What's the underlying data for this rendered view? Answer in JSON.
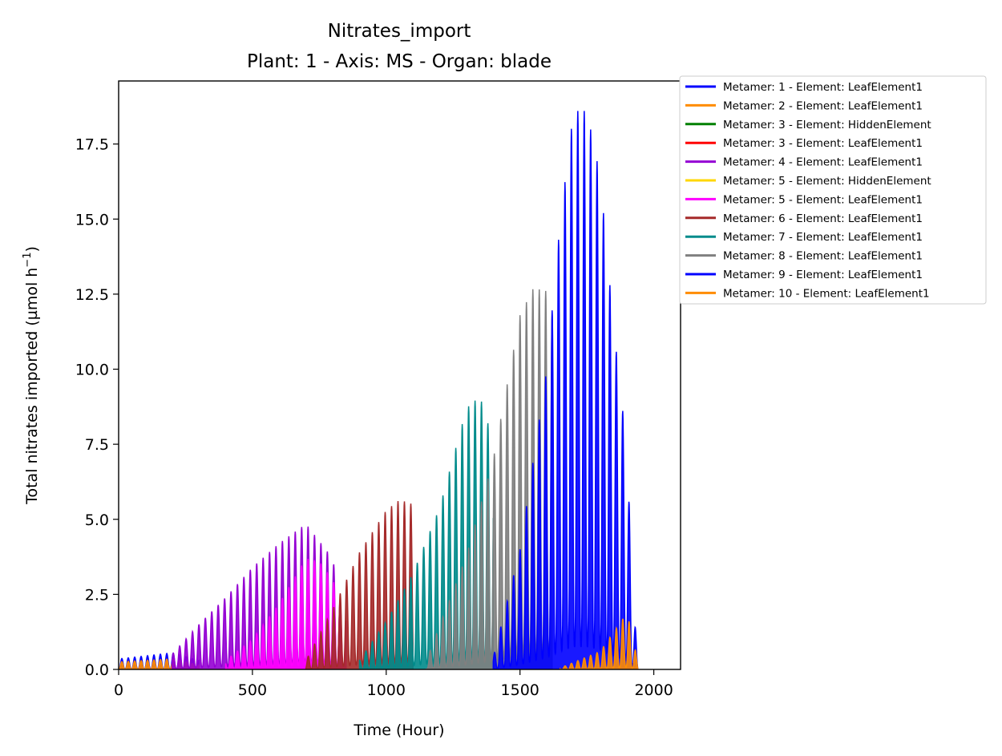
{
  "chart_data": {
    "type": "line",
    "title": "Nitrates_import",
    "subtitle": "Plant: 1 - Axis: MS - Organ: blade",
    "xlabel": "Time (Hour)",
    "ylabel_main": "Total nitrates imported (µmol h",
    "ylabel_sup": "−1",
    "ylabel_end": ")",
    "xlim": [
      0,
      2100
    ],
    "ylim": [
      0,
      19.6
    ],
    "xticks": [
      0,
      500,
      1000,
      1500,
      2000
    ],
    "xtick_labels": [
      "0",
      "500",
      "1000",
      "1500",
      "2000"
    ],
    "yticks": [
      0,
      2.5,
      5,
      7.5,
      10,
      12.5,
      15,
      17.5
    ],
    "ytick_labels": [
      "0.0",
      "2.5",
      "5.0",
      "7.5",
      "10.0",
      "12.5",
      "15.0",
      "17.5"
    ],
    "grid": false,
    "legend_position": "outside-top-right",
    "oscillation_period_hours": 24,
    "series": [
      {
        "name": "Metamer: 1 - Element: LeafElement1",
        "color": "#0000ff",
        "x": [
          0,
          100,
          200,
          300
        ],
        "y": [
          0.35,
          0.45,
          0.55,
          0.3
        ]
      },
      {
        "name": "Metamer: 2 - Element: LeafElement1",
        "color": "#ff8c00",
        "x": [
          0,
          100,
          200,
          300
        ],
        "y": [
          0.25,
          0.3,
          0.35,
          0.15
        ]
      },
      {
        "name": "Metamer: 3 - Element: HiddenElement",
        "color": "#008000",
        "x": [],
        "y": []
      },
      {
        "name": "Metamer: 3 - Element: LeafElement1",
        "color": "#ff0000",
        "x": [],
        "y": []
      },
      {
        "name": "Metamer: 4 - Element: LeafElement1",
        "color": "#9400d3",
        "x": [
          200,
          300,
          400,
          500,
          600,
          700,
          800,
          850
        ],
        "y": [
          0.5,
          1.5,
          2.4,
          3.4,
          4.2,
          4.85,
          3.7,
          1.2
        ]
      },
      {
        "name": "Metamer: 5 - Element: HiddenElement",
        "color": "#ffd700",
        "x": [],
        "y": []
      },
      {
        "name": "Metamer: 5 - Element: LeafElement1",
        "color": "#ff00ff",
        "x": [
          400,
          500,
          600,
          700,
          750,
          800,
          850
        ],
        "y": [
          0.3,
          1.0,
          2.2,
          3.7,
          3.6,
          3.0,
          1.8
        ]
      },
      {
        "name": "Metamer: 6 - Element: LeafElement1",
        "color": "#a52a2a",
        "x": [
          700,
          800,
          900,
          1000,
          1050,
          1100
        ],
        "y": [
          0.3,
          2.0,
          3.9,
          5.3,
          5.65,
          5.5
        ]
      },
      {
        "name": "Metamer: 7 - Element: LeafElement1",
        "color": "#008b8b",
        "x": [
          900,
          1000,
          1100,
          1200,
          1300,
          1350,
          1400
        ],
        "y": [
          0.3,
          1.6,
          3.2,
          5.4,
          8.7,
          9.1,
          7.6
        ]
      },
      {
        "name": "Metamer: 8 - Element: LeafElement1",
        "color": "#808080",
        "x": [
          1150,
          1300,
          1400,
          1500,
          1550,
          1600,
          1620
        ],
        "y": [
          0.3,
          3.8,
          7.0,
          11.8,
          12.7,
          12.6,
          11.9
        ]
      },
      {
        "name": "Metamer: 9 - Element: LeafElement1",
        "color": "#0000ff",
        "x": [
          1400,
          1500,
          1600,
          1650,
          1700,
          1750,
          1800,
          1850,
          1900,
          1920,
          1940
        ],
        "y": [
          0.4,
          4.0,
          10.0,
          14.9,
          18.6,
          18.6,
          16.4,
          11.4,
          7.3,
          2.8,
          0.3
        ]
      },
      {
        "name": "Metamer: 10 - Element: LeafElement1",
        "color": "#ff8c00",
        "x": [
          1650,
          1800,
          1870,
          1900,
          1940
        ],
        "y": [
          0.05,
          0.6,
          1.5,
          1.9,
          0.3
        ]
      }
    ]
  }
}
